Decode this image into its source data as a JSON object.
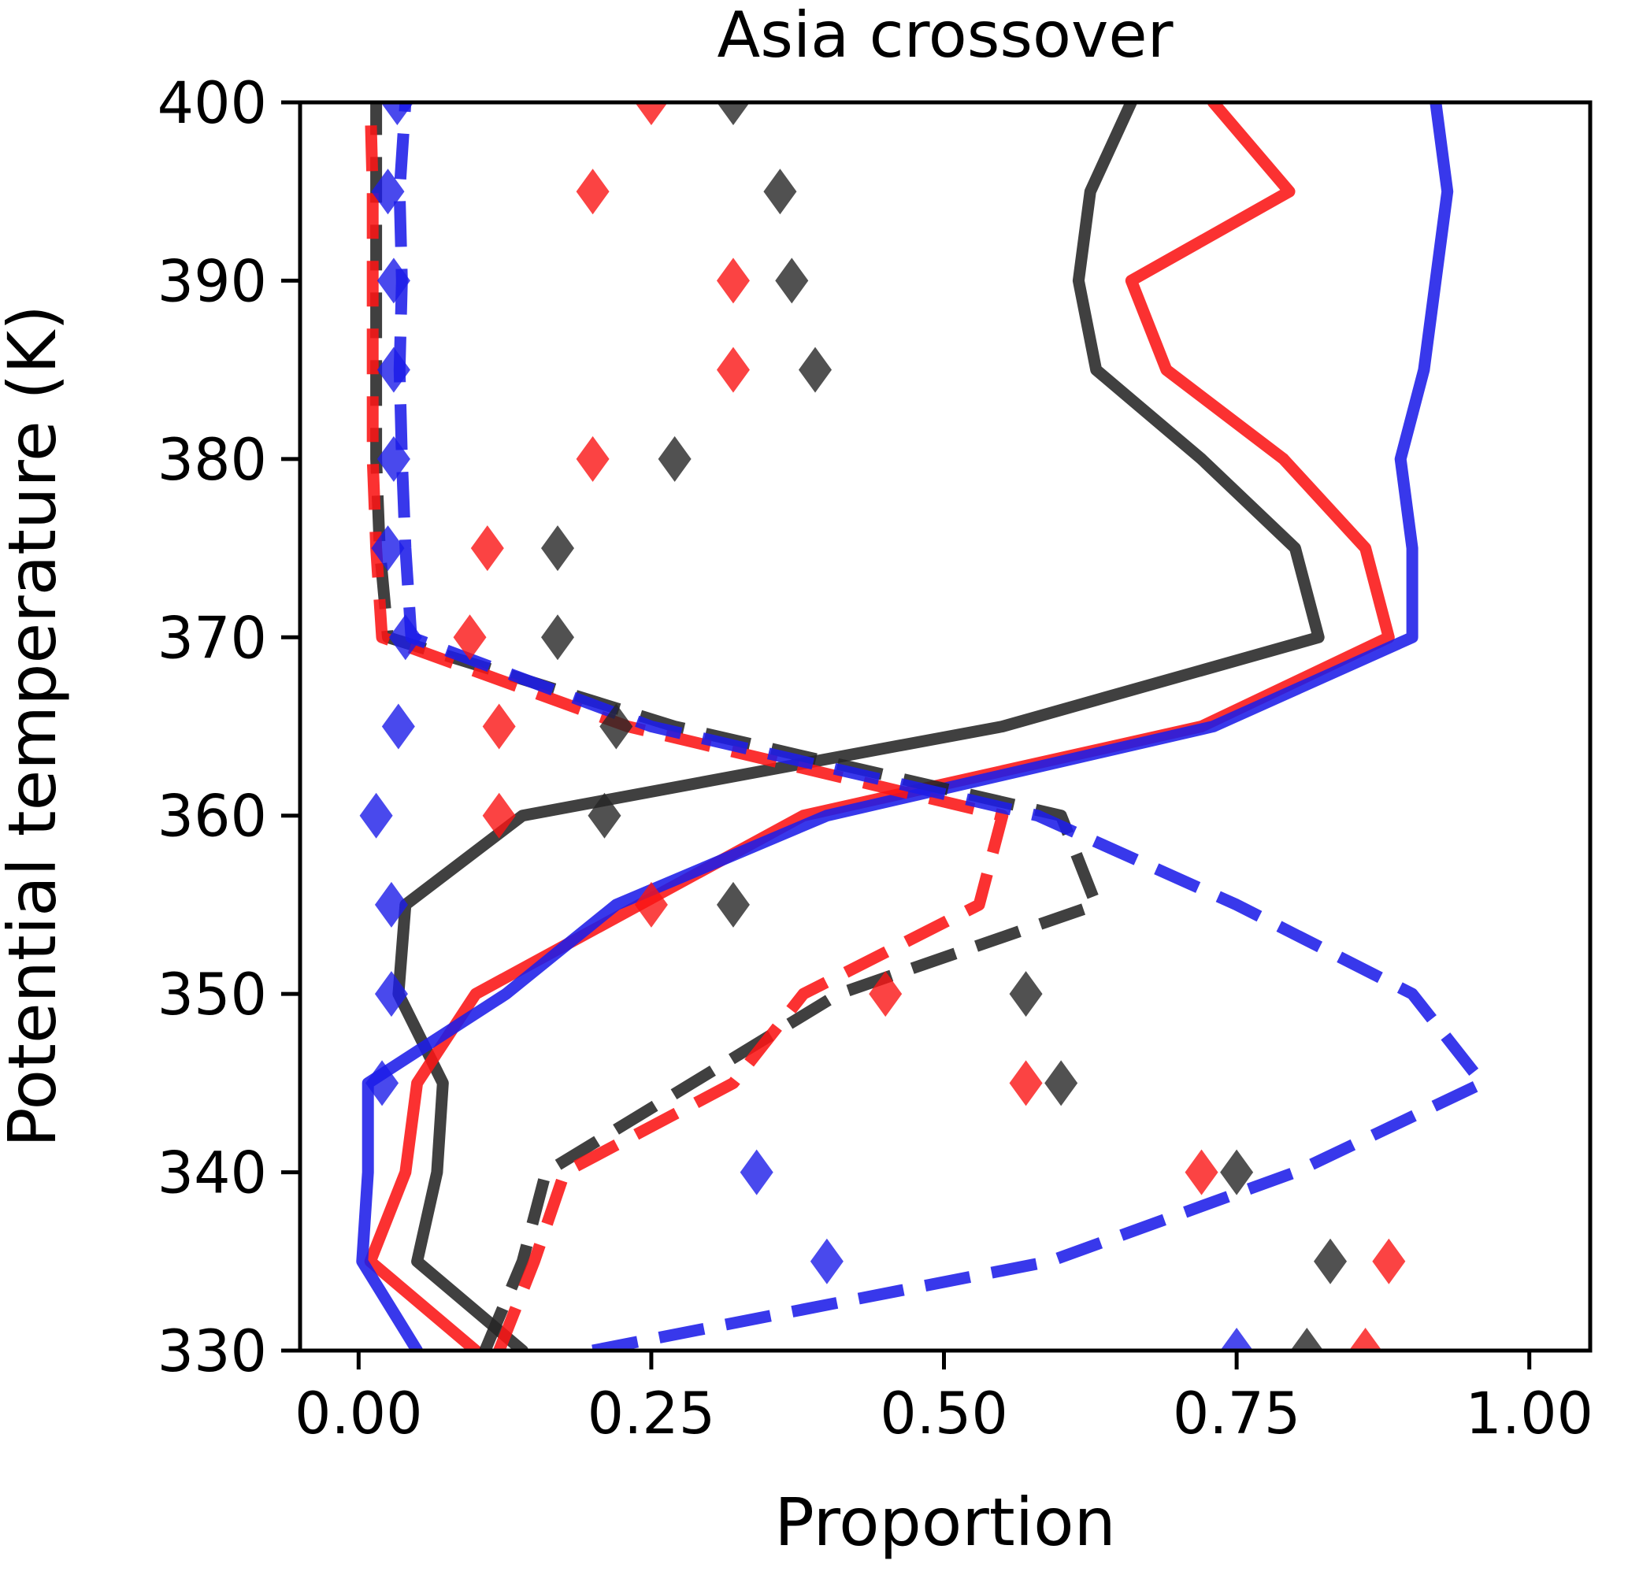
{
  "figure": {
    "title": "Asia crossover",
    "xlabel": "Proportion",
    "ylabel": "Potential temperature (K)"
  },
  "chart_data": {
    "type": "line",
    "title": "Asia crossover",
    "xlabel": "Proportion",
    "ylabel": "Potential temperature (K)",
    "orientation": "profile (y = potential temperature, x = proportion)",
    "xlim": [
      -0.05,
      1.052
    ],
    "ylim": [
      330,
      400
    ],
    "grid": false,
    "legend": "none",
    "xticks": {
      "values": [
        0.0,
        0.25,
        0.5,
        0.75,
        1.0
      ],
      "labels": [
        "0.00",
        "0.25",
        "0.50",
        "0.75",
        "1.00"
      ]
    },
    "yticks": {
      "values": [
        330,
        340,
        350,
        360,
        370,
        380,
        390,
        400
      ],
      "labels": [
        "330",
        "340",
        "350",
        "360",
        "370",
        "380",
        "390",
        "400"
      ]
    },
    "levels_K": [
      330,
      335,
      340,
      345,
      350,
      355,
      360,
      365,
      370,
      375,
      380,
      385,
      390,
      395,
      400
    ],
    "colors": {
      "black": "#252525",
      "red": "#fa1414",
      "blue": "#1c1ce8"
    },
    "series": [
      {
        "name": "line-solid-black",
        "color": "black",
        "dashed": false,
        "values": [
          0.14,
          0.05,
          0.067,
          0.072,
          0.034,
          0.04,
          0.14,
          0.55,
          0.82,
          0.8,
          0.72,
          0.63,
          0.615,
          0.625,
          0.66
        ]
      },
      {
        "name": "line-solid-red",
        "color": "red",
        "dashed": false,
        "values": [
          0.1,
          0.01,
          0.04,
          0.05,
          0.1,
          0.24,
          0.38,
          0.72,
          0.88,
          0.86,
          0.79,
          0.69,
          0.66,
          0.795,
          0.73
        ]
      },
      {
        "name": "line-solid-blue",
        "color": "blue",
        "dashed": false,
        "values": [
          0.05,
          0.003,
          0.008,
          0.008,
          0.126,
          0.22,
          0.4,
          0.73,
          0.9,
          0.9,
          0.89,
          0.91,
          0.92,
          0.93,
          0.92
        ]
      },
      {
        "name": "line-dashed-black",
        "color": "black",
        "dashed": true,
        "values": [
          0.108,
          0.14,
          0.16,
          0.285,
          0.41,
          0.63,
          0.6,
          0.27,
          0.025,
          0.018,
          0.015,
          0.015,
          0.015,
          0.015,
          0.015
        ]
      },
      {
        "name": "line-dashed-red",
        "color": "red",
        "dashed": true,
        "values": [
          0.12,
          0.15,
          0.176,
          0.32,
          0.38,
          0.53,
          0.55,
          0.23,
          0.02,
          0.015,
          0.012,
          0.012,
          0.012,
          0.012,
          0.01
        ]
      },
      {
        "name": "line-dashed-blue",
        "color": "blue",
        "dashed": true,
        "values": [
          0.2,
          0.59,
          0.8,
          0.96,
          0.9,
          0.75,
          0.58,
          0.25,
          0.045,
          0.04,
          0.037,
          0.035,
          0.037,
          0.035,
          0.04
        ]
      }
    ],
    "markers": [
      {
        "name": "scatter-black",
        "color": "black",
        "shape": "diamond",
        "values": [
          0.81,
          0.83,
          0.75,
          0.6,
          0.57,
          0.32,
          0.21,
          0.22,
          0.17,
          0.17,
          0.27,
          0.39,
          0.37,
          0.36,
          0.32
        ]
      },
      {
        "name": "scatter-red",
        "color": "red",
        "shape": "diamond",
        "values": [
          0.86,
          0.88,
          0.72,
          0.57,
          0.45,
          0.25,
          0.12,
          0.12,
          0.095,
          0.11,
          0.2,
          0.32,
          0.32,
          0.2,
          0.25
        ]
      },
      {
        "name": "scatter-blue",
        "color": "blue",
        "shape": "diamond",
        "values": [
          0.75,
          0.4,
          0.34,
          0.02,
          0.028,
          0.028,
          0.015,
          0.034,
          0.04,
          0.025,
          0.03,
          0.03,
          0.03,
          0.025,
          0.033
        ]
      }
    ]
  }
}
